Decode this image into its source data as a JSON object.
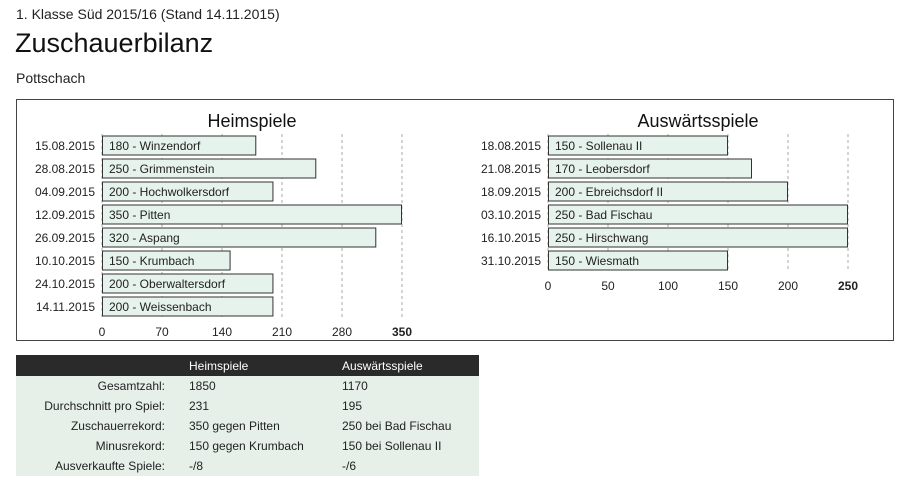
{
  "header": {
    "league": "1. Klasse Süd 2015/16 (Stand 14.11.2015)",
    "title": "Zuschauerbilanz",
    "team": "Pottschach"
  },
  "chart_data": [
    {
      "type": "bar",
      "orientation": "horizontal",
      "title": "Heimspiele",
      "categories": [
        "15.08.2015",
        "28.08.2015",
        "04.09.2015",
        "12.09.2015",
        "26.09.2015",
        "10.10.2015",
        "24.10.2015",
        "14.11.2015"
      ],
      "bar_labels": [
        "180 - Winzendorf",
        "250 - Grimmenstein",
        "200 - Hochwolkersdorf",
        "350 - Pitten",
        "320 - Aspang",
        "150 - Krumbach",
        "200 - Oberwaltersdorf",
        "200 - Weissenbach"
      ],
      "values": [
        180,
        250,
        200,
        350,
        320,
        150,
        200,
        200
      ],
      "xlim": [
        0,
        350
      ],
      "xticks": [
        "0",
        "70",
        "140",
        "210",
        "280",
        "350"
      ],
      "grid": true,
      "bar_color": "#e6f2ec"
    },
    {
      "type": "bar",
      "orientation": "horizontal",
      "title": "Auswärtsspiele",
      "categories": [
        "18.08.2015",
        "21.08.2015",
        "18.09.2015",
        "03.10.2015",
        "16.10.2015",
        "31.10.2015"
      ],
      "bar_labels": [
        "150 - Sollenau II",
        "170 - Leobersdorf",
        "200 - Ebreichsdorf II",
        "250 - Bad Fischau",
        "250 - Hirschwang",
        "150 - Wiesmath"
      ],
      "values": [
        150,
        170,
        200,
        250,
        250,
        150
      ],
      "xlim": [
        0,
        250
      ],
      "xticks": [
        "0",
        "50",
        "100",
        "150",
        "200",
        "250"
      ],
      "grid": true,
      "bar_color": "#e6f2ec"
    }
  ],
  "stats": {
    "headers": [
      "",
      "Heimspiele",
      "Auswärtsspiele"
    ],
    "rows": [
      [
        "Gesamtzahl:",
        "1850",
        "1170"
      ],
      [
        "Durchschnitt pro Spiel:",
        "231",
        "195"
      ],
      [
        "Zuschauerrekord:",
        "350 gegen Pitten",
        "250 bei Bad Fischau"
      ],
      [
        "Minusrekord:",
        "150 gegen Krumbach",
        "150 bei Sollenau II"
      ],
      [
        "Ausverkaufte Spiele:",
        "-/8",
        "-/6"
      ]
    ]
  }
}
